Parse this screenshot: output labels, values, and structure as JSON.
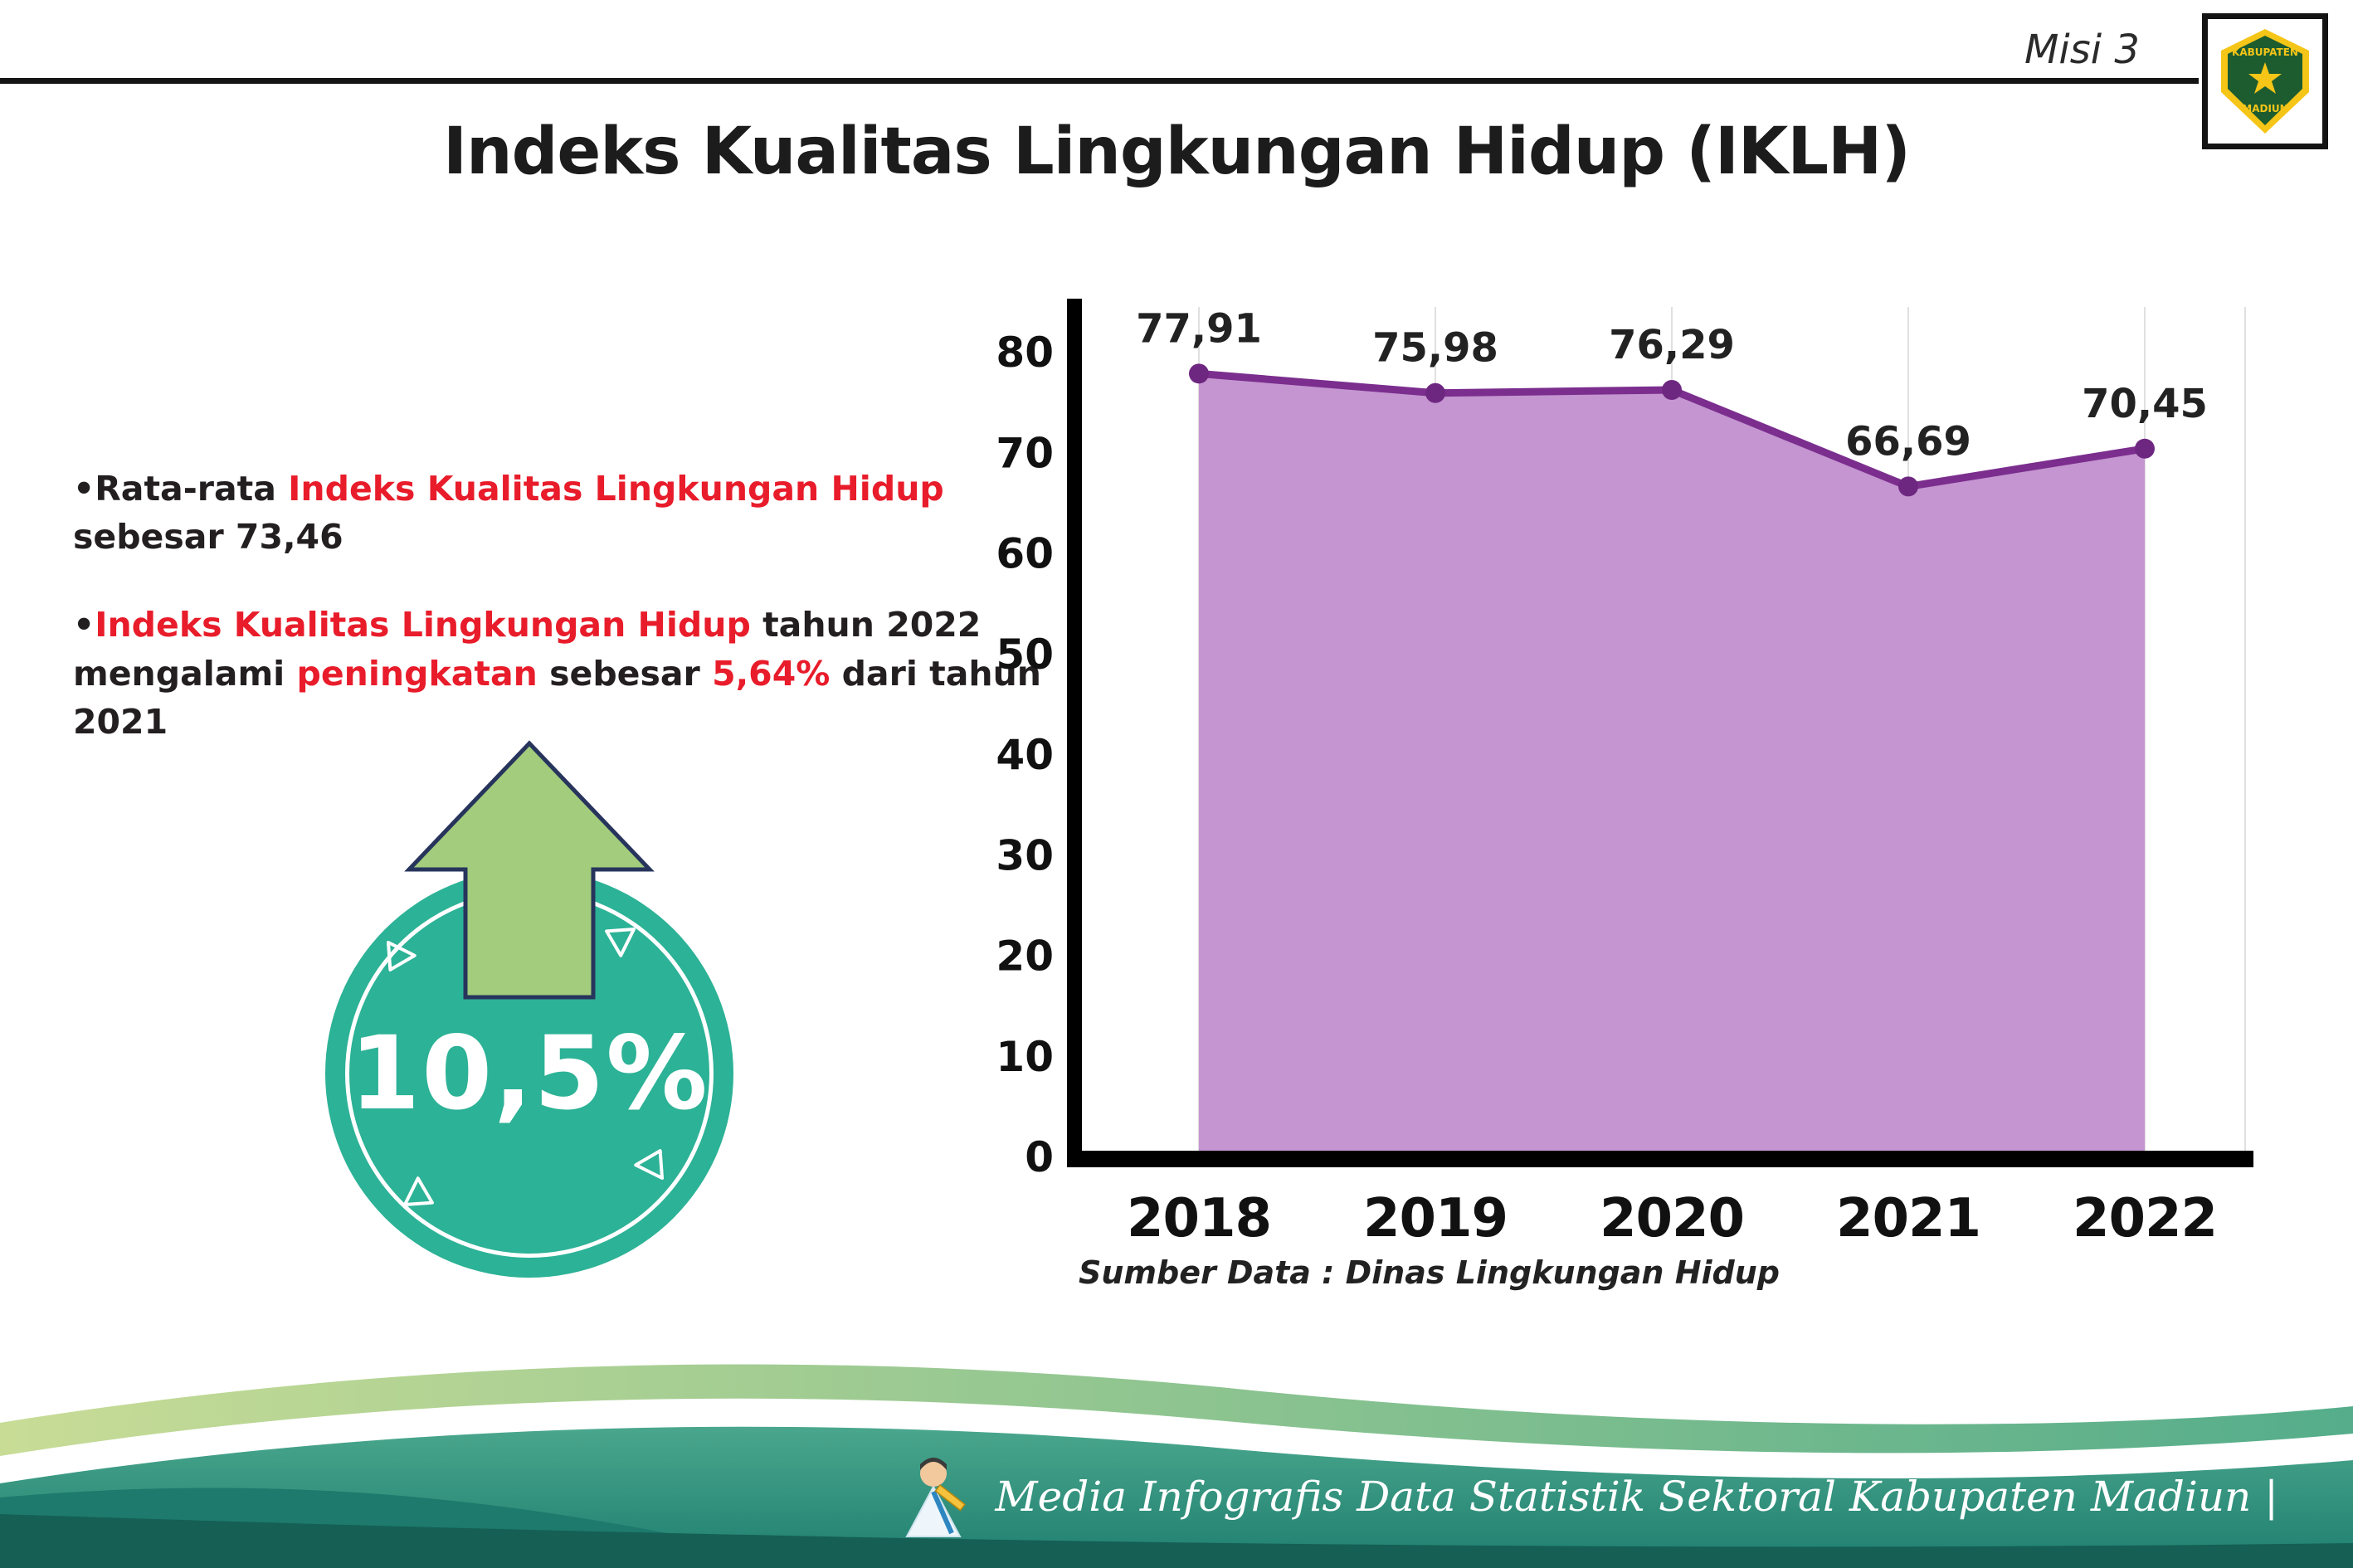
{
  "header": {
    "misi_label": "Misi 3",
    "title": "Indeks Kualitas Lingkungan Hidup (IKLH)",
    "logo": {
      "top_text": "KABUPATEN",
      "bottom_text": "MADIUN"
    }
  },
  "bullets": {
    "b1": {
      "pre": "•Rata-rata ",
      "red": "Indeks Kualitas Lingkungan Hidup",
      "post": " sebesar 73,46"
    },
    "b2": {
      "bullet": "•",
      "red1": "Indeks Kualitas Lingkungan Hidup",
      "mid1": " tahun 2022 mengalami ",
      "red2": "peningkatan",
      "mid2": " sebesar ",
      "red3": "5,64%",
      "post": " dari tahun 2021"
    }
  },
  "badge": {
    "value": "10,5%"
  },
  "chart_data": {
    "type": "area",
    "title": "Indeks Kualitas Lingkungan Hidup (IKLH)",
    "categories": [
      "2018",
      "2019",
      "2020",
      "2021",
      "2022"
    ],
    "values": [
      77.91,
      75.98,
      76.29,
      66.69,
      70.45
    ],
    "value_labels": [
      "77,91",
      "75,98",
      "76,29",
      "66,69",
      "70,45"
    ],
    "xlabel": "",
    "ylabel": "",
    "ylim": [
      0,
      80
    ],
    "yticks": [
      0,
      10,
      20,
      30,
      40,
      50,
      60,
      70,
      80
    ],
    "grid": "vertical-light",
    "legend": "none",
    "line_color": "#7b2e8e",
    "point_color": "#6e2781",
    "fill_color": "#c495d0",
    "source_note": "Sumber Data : Dinas Lingkungan Hidup"
  },
  "footer": {
    "credit": "Media Infografis Data Statistik Sektoral Kabupaten Madiun |"
  }
}
